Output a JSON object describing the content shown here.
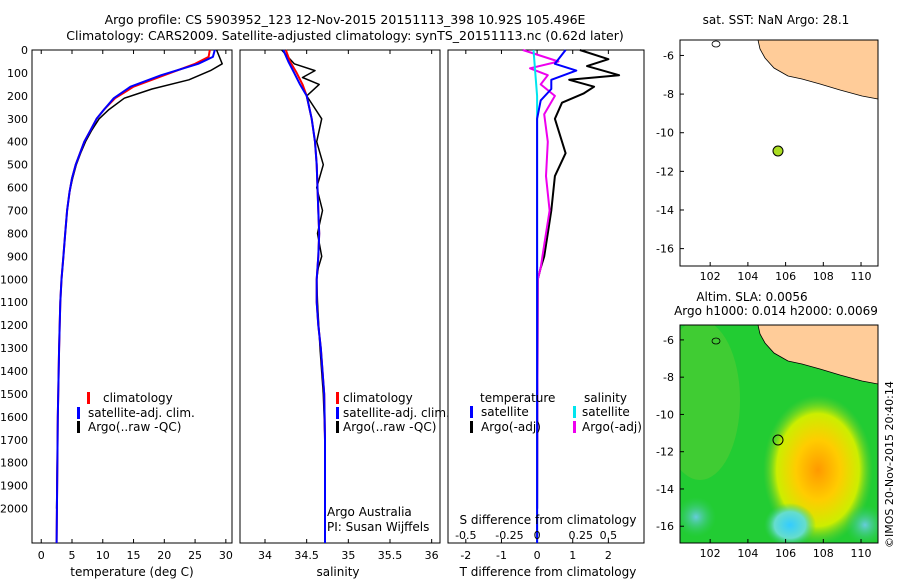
{
  "titles": {
    "line1": "Argo profile: CS 5903952_123 12-Nov-2015 20151113_398 10.92S 105.496E",
    "line2": "Climatology: CARS2009. Satellite-adjusted climatology: synTS_20151113.nc (0.62d later)"
  },
  "depth_ticks": [
    0,
    100,
    200,
    300,
    400,
    500,
    600,
    700,
    800,
    900,
    1000,
    1100,
    1200,
    1300,
    1400,
    1500,
    1600,
    1700,
    1800,
    1900,
    2000
  ],
  "colors": {
    "climatology": "#ff0000",
    "satellite": "#0000ff",
    "argo": "#000000",
    "s_sat": "#00e5ee",
    "s_argo": "#ee00ee",
    "land": "#ffcc99",
    "circle": "#aadd22"
  },
  "chart_data": [
    {
      "type": "line",
      "xlabel": "temperature (deg C)",
      "ylim": [
        2150,
        0
      ],
      "xlim": [
        -1.5,
        31
      ],
      "xticks": [
        0,
        5,
        10,
        15,
        20,
        25,
        30
      ],
      "legend": [
        "climatology",
        "satellite-adj. clim.",
        "Argo(..raw -QC)"
      ],
      "legend_position": "lower-left",
      "series": [
        {
          "name": "climatology",
          "color": "red",
          "x": [
            27.4,
            27.2,
            25,
            20,
            15,
            12,
            10.2,
            9,
            8,
            7,
            6.3,
            5.6,
            5,
            4.6,
            4.2,
            3.9,
            3.6,
            3.3,
            3.1,
            2.9,
            2.7,
            2.5
          ],
          "y": [
            0,
            30,
            60,
            110,
            160,
            210,
            260,
            300,
            350,
            400,
            450,
            500,
            560,
            620,
            700,
            800,
            900,
            1000,
            1100,
            1300,
            1600,
            2150
          ]
        },
        {
          "name": "satellite-adj. clim.",
          "color": "blue",
          "x": [
            28.2,
            27.9,
            25.5,
            19.5,
            14.5,
            11.8,
            10.2,
            9,
            8,
            7,
            6.3,
            5.6,
            5,
            4.6,
            4.2,
            3.9,
            3.6,
            3.3,
            3.1,
            2.9,
            2.7,
            2.5
          ],
          "y": [
            0,
            30,
            60,
            110,
            160,
            210,
            260,
            300,
            350,
            400,
            450,
            500,
            560,
            620,
            700,
            800,
            900,
            1000,
            1100,
            1300,
            1600,
            2150
          ]
        },
        {
          "name": "Argo(..raw -QC)",
          "color": "black",
          "x": [
            28.5,
            29.4,
            27.5,
            24,
            18,
            13.5,
            11,
            9.4,
            8.2,
            7.2,
            6.4,
            5.7,
            5.1,
            4.6,
            4.2,
            3.9,
            3.6,
            3.3,
            3.1,
            2.9,
            2.7,
            2.5
          ],
          "y": [
            0,
            60,
            90,
            130,
            170,
            210,
            260,
            300,
            350,
            400,
            450,
            500,
            560,
            620,
            700,
            800,
            900,
            1000,
            1100,
            1300,
            1600,
            2000
          ]
        }
      ]
    },
    {
      "type": "line",
      "xlabel": "salinity",
      "ylim": [
        2150,
        0
      ],
      "xlim": [
        33.7,
        36.1
      ],
      "xticks": [
        34,
        34.5,
        35,
        35.5,
        36
      ],
      "legend": [
        "climatology",
        "satellite-adj. clim.",
        "Argo(..raw -QC)"
      ],
      "legend_position": "lower-right",
      "annotation": [
        "Argo Australia",
        "PI: Susan Wijffels"
      ],
      "series": [
        {
          "name": "climatology",
          "color": "red",
          "x": [
            34.25,
            34.3,
            34.38,
            34.45,
            34.5,
            34.56,
            34.6,
            34.62,
            34.63,
            34.64,
            34.65,
            34.64,
            34.63,
            34.62,
            34.62,
            34.64,
            34.67,
            34.69,
            34.71,
            34.72,
            34.72
          ],
          "y": [
            0,
            50,
            100,
            150,
            200,
            300,
            400,
            500,
            600,
            700,
            800,
            900,
            950,
            1000,
            1100,
            1200,
            1300,
            1400,
            1500,
            1700,
            2150
          ]
        },
        {
          "name": "satellite-adj. clim.",
          "color": "blue",
          "x": [
            34.22,
            34.28,
            34.35,
            34.42,
            34.5,
            34.56,
            34.6,
            34.62,
            34.63,
            34.64,
            34.65,
            34.64,
            34.63,
            34.62,
            34.62,
            34.64,
            34.67,
            34.69,
            34.71,
            34.72,
            34.72
          ],
          "y": [
            0,
            50,
            100,
            150,
            200,
            300,
            400,
            500,
            600,
            700,
            800,
            900,
            950,
            1000,
            1100,
            1200,
            1300,
            1400,
            1500,
            1700,
            2150
          ]
        },
        {
          "name": "Argo(..raw -QC)",
          "color": "black",
          "x": [
            34.2,
            34.35,
            34.6,
            34.45,
            34.65,
            34.5,
            34.68,
            34.62,
            34.7,
            34.62,
            34.69,
            34.63,
            34.68,
            34.64,
            34.62,
            34.63,
            34.66,
            34.7,
            34.72,
            34.72
          ],
          "y": [
            0,
            60,
            90,
            120,
            150,
            200,
            300,
            400,
            500,
            600,
            700,
            800,
            900,
            950,
            1000,
            1100,
            1300,
            1500,
            1700,
            2000
          ]
        }
      ]
    },
    {
      "type": "line",
      "xlabel": "T difference from climatology",
      "xlabel_top": "S difference from climatology",
      "ylim": [
        2150,
        0
      ],
      "xlim": [
        -2.5,
        3
      ],
      "xticks": [
        -2,
        -1,
        0,
        1,
        2
      ],
      "xticks_s": [
        -0.5,
        -0.25,
        0,
        0.25,
        0.5
      ],
      "legend_groups": [
        "temperature",
        "salinity"
      ],
      "legend": [
        "satellite",
        "Argo(-adj)",
        "satellite",
        "Argo(-adj)"
      ],
      "legend_position": "lower",
      "series": [
        {
          "name": "satellite",
          "color": "blue",
          "x": [
            0.8,
            0.5,
            1.1,
            0.4,
            0.4,
            0.1,
            0.05,
            0,
            0,
            0,
            0,
            0,
            0,
            0
          ],
          "y": [
            0,
            60,
            90,
            130,
            170,
            220,
            260,
            300,
            400,
            600,
            800,
            1000,
            1500,
            2150
          ]
        },
        {
          "name": "Argo(-adj)",
          "color": "black",
          "x": [
            1.2,
            2,
            1.4,
            2.3,
            0.9,
            1.6,
            1.3,
            0.7,
            0.5,
            0.8,
            0.5,
            0.4,
            0.3,
            0.2,
            0.1,
            0.02,
            0
          ],
          "y": [
            0,
            40,
            70,
            110,
            130,
            160,
            190,
            230,
            300,
            450,
            550,
            700,
            800,
            900,
            950,
            1000,
            2000
          ]
        },
        {
          "name": "satellite",
          "color": "#00e5ee",
          "x": [
            -0.1,
            -0.05,
            0,
            0,
            0,
            0,
            0,
            0,
            0
          ],
          "y": [
            0,
            100,
            200,
            300,
            500,
            800,
            1200,
            1600,
            2150
          ]
        },
        {
          "name": "Argo(-adj)",
          "color": "#ee00ee",
          "x": [
            -0.4,
            0.6,
            -0.2,
            0.3,
            0.1,
            0.5,
            0.2,
            0.3,
            0.25,
            0.35,
            0.2,
            0.1,
            0.02,
            0
          ],
          "y": [
            0,
            50,
            80,
            110,
            150,
            200,
            280,
            400,
            550,
            700,
            850,
            950,
            1000,
            2000
          ]
        }
      ]
    }
  ],
  "maps": {
    "top": {
      "title": "sat. SST: NaN Argo: 28.1",
      "lon_ticks": [
        102,
        104,
        106,
        108,
        110
      ],
      "lat_ticks": [
        -6,
        -8,
        -10,
        -12,
        -14,
        -16
      ],
      "xlim": [
        100.4,
        110.9
      ],
      "ylim": [
        -16.9,
        -5.2
      ],
      "marker": {
        "lon": 105.5,
        "lat": -10.92
      }
    },
    "bottom": {
      "title1": "Altim. SLA: 0.0056",
      "title2": "Argo h1000: 0.014 h2000: 0.0069",
      "lon_ticks": [
        102,
        104,
        106,
        108,
        110
      ],
      "lat_ticks": [
        -6,
        -8,
        -10,
        -12,
        -14,
        -16
      ],
      "xlim": [
        100.4,
        110.9
      ],
      "ylim": [
        -16.9,
        -5.2
      ],
      "marker": {
        "lon": 105.5,
        "lat": -10.92
      }
    }
  },
  "credit": "©IMOS 20-Nov-2015 20:40:14"
}
